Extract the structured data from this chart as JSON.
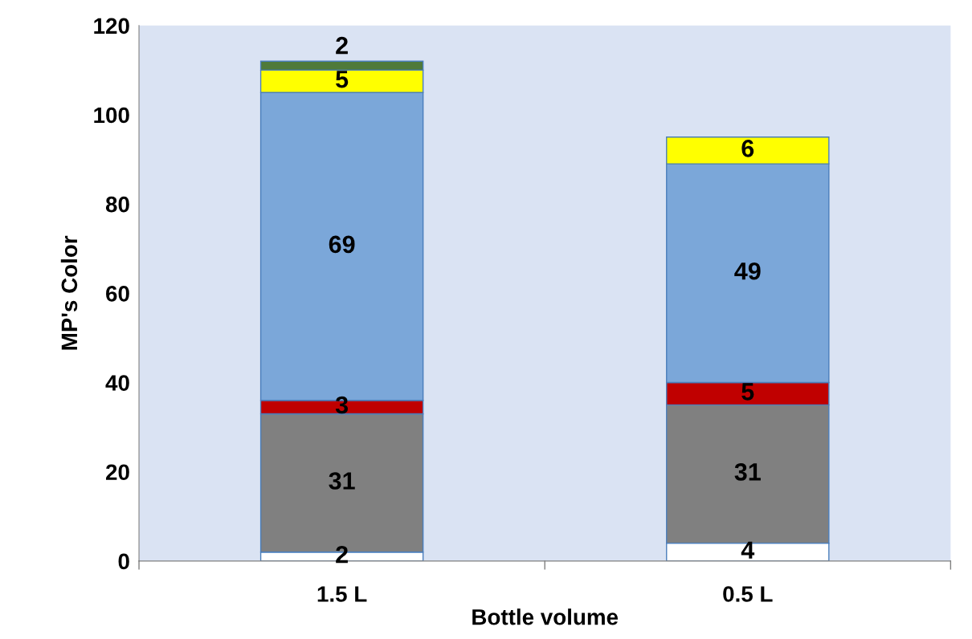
{
  "chart_data": {
    "type": "bar",
    "stacked": true,
    "xlabel": "Bottle volume",
    "ylabel": "MP's Color",
    "categories": [
      "1.5 L",
      "0.5 L"
    ],
    "series": [
      {
        "color": "#ffffff",
        "values": [
          2,
          4
        ]
      },
      {
        "color": "#808080",
        "values": [
          31,
          31
        ]
      },
      {
        "color": "#c00000",
        "values": [
          3,
          5
        ]
      },
      {
        "color": "#7ba7d9",
        "values": [
          69,
          49
        ]
      },
      {
        "color": "#ffff00",
        "values": [
          5,
          6
        ]
      },
      {
        "color": "#4f7a3a",
        "values": [
          2,
          null
        ]
      }
    ],
    "ylim": [
      0,
      120
    ],
    "yticks": [
      0,
      20,
      40,
      60,
      80,
      100,
      120
    ],
    "grid": false,
    "data_labels": true
  }
}
